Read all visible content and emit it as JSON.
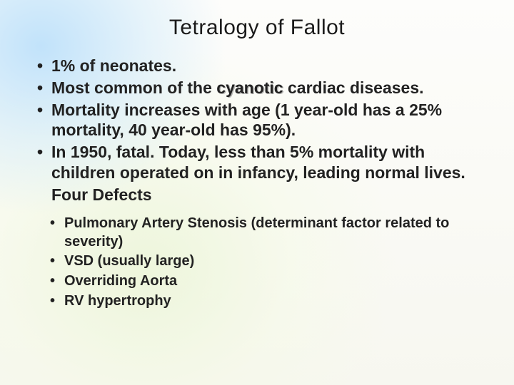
{
  "title": "Tetralogy of Fallot",
  "title_fontsize": 30,
  "title_color": "#1a1a1a",
  "body_fontsize": 23,
  "body_color": "#222222",
  "sub_fontsize": 20,
  "background": {
    "top_glow": "#bee1fa",
    "mid_glow": "#ebf5d7",
    "base": "#f7f7f0"
  },
  "bullets": [
    {
      "text": "1% of neonates."
    },
    {
      "parts": [
        {
          "t": "Most common of the "
        },
        {
          "t": "cyanotic",
          "shadow": true
        },
        {
          "t": " cardiac diseases."
        }
      ]
    },
    {
      "text": "Mortality increases with age (1 year-old has a 25% mortality, 40 year-old has 95%)."
    },
    {
      "text": "In 1950, fatal. Today, less than 5% mortality with children operated on in infancy, leading normal lives."
    },
    {
      "text": "Four Defects",
      "no_bullet": true
    }
  ],
  "sub_bullets": [
    "Pulmonary Artery Stenosis (determinant factor related to severity)",
    "VSD (usually large)",
    "Overriding Aorta",
    "RV hypertrophy"
  ]
}
